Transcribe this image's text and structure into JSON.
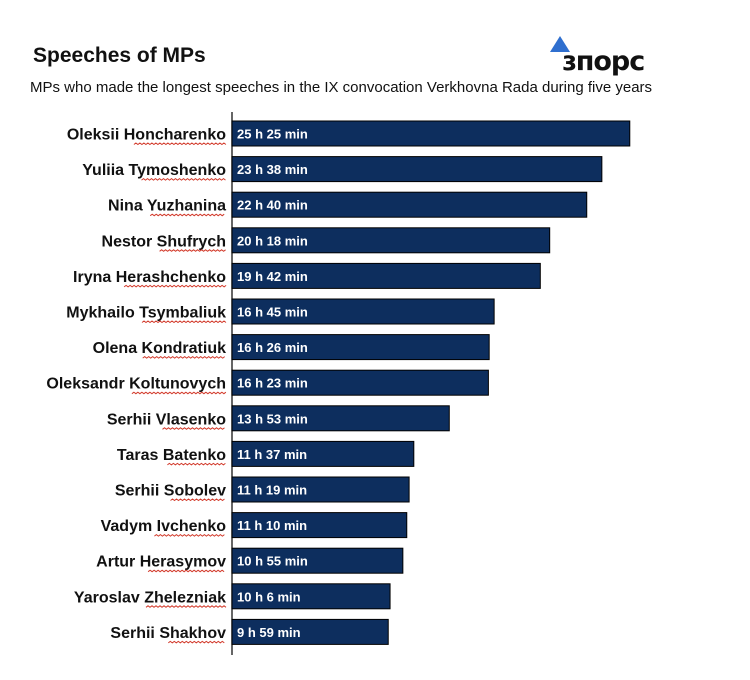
{
  "title": "Speeches of MPs",
  "subtitle": "MPs who made the longest speeches in the IX convocation Verkhovna Rada during five years",
  "logo": {
    "text": "ɜпорс",
    "icon": "triangle-icon",
    "icon_color": "#2f6fcf"
  },
  "colors": {
    "bar": "#0d2e5e",
    "bar_border": "#000000",
    "axis": "#333333",
    "bar_text": "#ffffff"
  },
  "chart_data": {
    "type": "bar",
    "orientation": "horizontal",
    "categories": [
      "Oleksii Honcharenko",
      "Yuliia Tymoshenko",
      "Nina Yuzhanina",
      "Nestor Shufrych",
      "Iryna Herashchenko",
      "Mykhailo Tsymbaliuk",
      "Olena Kondratiuk",
      "Oleksandr Koltunovych",
      "Serhii Vlasenko",
      "Taras Batenko",
      "Serhii Sobolev",
      "Vadym Ivchenko",
      "Artur Herasymov",
      "Yaroslav Zhelezniak",
      "Serhii Shakhov"
    ],
    "values": [
      25.417,
      23.633,
      22.667,
      20.3,
      19.7,
      16.75,
      16.433,
      16.383,
      13.883,
      11.617,
      11.317,
      11.167,
      10.917,
      10.1,
      9.983
    ],
    "value_labels": [
      "25 h 25 min",
      "23 h 38 min",
      "22 h 40 min",
      "20 h 18 min",
      "19 h 42 min",
      "16 h 45 min",
      "16 h 26 min",
      "16 h 23 min",
      "13 h 53 min",
      "11 h 37 min",
      "11 h 19 min",
      "11 h 10 min",
      "10 h 55 min",
      "10 h 6 min",
      "9 h 59 min"
    ],
    "unit": "hours",
    "grid": false,
    "legend": "none"
  }
}
